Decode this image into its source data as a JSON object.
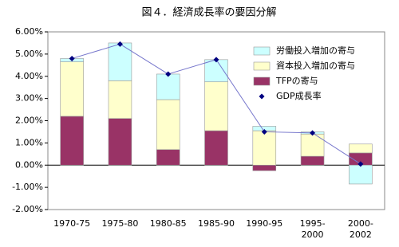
{
  "chart_data": {
    "type": "bar",
    "stacked": true,
    "title": "図４．経済成長率の要因分解",
    "categories": [
      "1970-75",
      "1975-80",
      "1980-85",
      "1985-90",
      "1990-95",
      "1995-\n2000",
      "2000-\n2002"
    ],
    "series": [
      {
        "name": "労働投入増加の寄与",
        "color": "#ccffff",
        "values": [
          0.15,
          1.7,
          1.15,
          1.0,
          0.2,
          0.1,
          -0.85
        ]
      },
      {
        "name": "資本投入増加の寄与",
        "color": "#ffffcc",
        "values": [
          2.45,
          1.7,
          2.25,
          2.2,
          1.55,
          1.0,
          0.4
        ]
      },
      {
        "name": "TFPの寄与",
        "color": "#993366",
        "values": [
          2.2,
          2.1,
          0.7,
          1.55,
          -0.25,
          0.4,
          0.55
        ]
      },
      {
        "name": "GDP成長率",
        "color": "#000080",
        "type": "line",
        "values": [
          4.8,
          5.45,
          4.1,
          4.75,
          1.5,
          1.45,
          0.05
        ]
      }
    ],
    "ylim": [
      -2,
      6
    ],
    "yticks": [
      {
        "value": -2,
        "label": "-2.00%"
      },
      {
        "value": -1,
        "label": "-1.00%"
      },
      {
        "value": 0,
        "label": "0.00%"
      },
      {
        "value": 1,
        "label": "1.00%"
      },
      {
        "value": 2,
        "label": "2.00%"
      },
      {
        "value": 3,
        "label": "3.00%"
      },
      {
        "value": 4,
        "label": "4.00%"
      },
      {
        "value": 5,
        "label": "5.00%"
      },
      {
        "value": 6,
        "label": "6.00%"
      }
    ],
    "legend": "upper right"
  }
}
